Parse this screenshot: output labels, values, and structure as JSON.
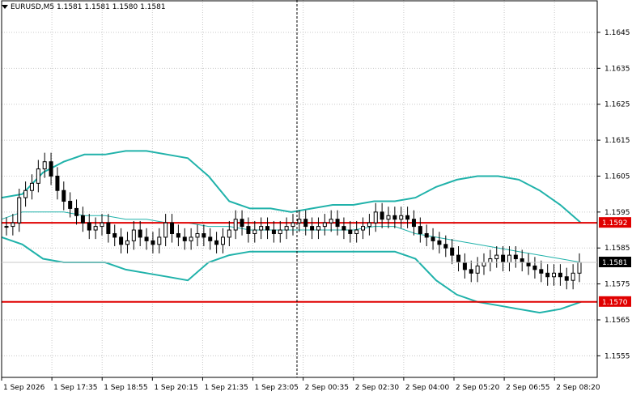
{
  "header": {
    "symbol": "EURUSD,M5",
    "open": "1.1581",
    "high": "1.1581",
    "low": "1.1580",
    "close": "1.1581"
  },
  "colors": {
    "background": "#ffffff",
    "grid": "#c8c8c8",
    "axis": "#000000",
    "band": "#20b2aa",
    "level_line": "#e00000",
    "candle": "#000000"
  },
  "chart_data": {
    "type": "candlestick",
    "title": "EURUSD,M5",
    "ylim": [
      1.1549,
      1.1654
    ],
    "y_ticks": [
      "1.1645",
      "1.1635",
      "1.1625",
      "1.1615",
      "1.1605",
      "1.1595",
      "1.1585",
      "1.1575",
      "1.1565",
      "1.1555"
    ],
    "x_ticks": [
      "1 Sep 2026",
      "1 Sep 17:35",
      "1 Sep 18:55",
      "1 Sep 20:15",
      "1 Sep 21:35",
      "1 Sep 23:05",
      "2 Sep 00:35",
      "2 Sep 02:30",
      "2 Sep 04:00",
      "2 Sep 05:20",
      "2 Sep 06:55",
      "2 Sep 08:20"
    ],
    "horizontal_levels": [
      {
        "value": 1.1592,
        "label": "1.1592",
        "color": "#e00000"
      },
      {
        "value": 1.157,
        "label": "1.1570",
        "color": "#e00000"
      }
    ],
    "current_price": {
      "value": 1.1581,
      "label": "1.1581"
    },
    "crosshair_x_tick": "1 Sep 23:05",
    "grid": "dotted",
    "bands": {
      "upper": [
        1.1599,
        1.16,
        1.1606,
        1.1609,
        1.1611,
        1.1611,
        1.1612,
        1.1612,
        1.1611,
        1.161,
        1.1605,
        1.1598,
        1.1596,
        1.1596,
        1.1595,
        1.1596,
        1.1597,
        1.1597,
        1.1598,
        1.1598,
        1.1599,
        1.1602,
        1.1604,
        1.1605,
        1.1605,
        1.1604,
        1.1601,
        1.1597,
        1.1592
      ],
      "middle": [
        1.1593,
        1.1595,
        1.1595,
        1.1595,
        1.1594,
        1.1594,
        1.1593,
        1.1593,
        1.1592,
        1.1592,
        1.1591,
        1.1591,
        1.159,
        1.159,
        1.159,
        1.159,
        1.159,
        1.159,
        1.1591,
        1.1591,
        1.1589,
        1.1588,
        1.1587,
        1.1586,
        1.1585,
        1.1584,
        1.1583,
        1.1582,
        1.1581
      ],
      "lower": [
        1.1588,
        1.1586,
        1.1582,
        1.1581,
        1.1581,
        1.1581,
        1.1579,
        1.1578,
        1.1577,
        1.1576,
        1.1581,
        1.1583,
        1.1584,
        1.1584,
        1.1584,
        1.1584,
        1.1584,
        1.1584,
        1.1584,
        1.1584,
        1.1582,
        1.1576,
        1.1572,
        1.157,
        1.1569,
        1.1568,
        1.1567,
        1.1568,
        1.157
      ]
    },
    "closes": [
      1.1591,
      1.1592,
      1.1599,
      1.1601,
      1.1603,
      1.1607,
      1.1609,
      1.1605,
      1.1601,
      1.1598,
      1.1596,
      1.1594,
      1.1592,
      1.159,
      1.1591,
      1.1592,
      1.1589,
      1.1588,
      1.1586,
      1.1587,
      1.159,
      1.1588,
      1.1587,
      1.1586,
      1.1588,
      1.1592,
      1.1589,
      1.1588,
      1.1587,
      1.1588,
      1.1589,
      1.1588,
      1.1587,
      1.1586,
      1.1588,
      1.159,
      1.1593,
      1.1591,
      1.1589,
      1.159,
      1.1591,
      1.159,
      1.1589,
      1.159,
      1.1591,
      1.1592,
      1.1593,
      1.1591,
      1.159,
      1.1591,
      1.1592,
      1.1593,
      1.1591,
      1.159,
      1.1589,
      1.159,
      1.1591,
      1.1592,
      1.1595,
      1.1593,
      1.1594,
      1.1593,
      1.1594,
      1.1593,
      1.1591,
      1.1589,
      1.1588,
      1.1587,
      1.1586,
      1.1585,
      1.1583,
      1.1581,
      1.1579,
      1.1578,
      1.158,
      1.1581,
      1.1582,
      1.1583,
      1.1581,
      1.1583,
      1.1582,
      1.1581,
      1.158,
      1.1579,
      1.1578,
      1.1577,
      1.1578,
      1.1577,
      1.1576,
      1.1578,
      1.1581
    ]
  }
}
